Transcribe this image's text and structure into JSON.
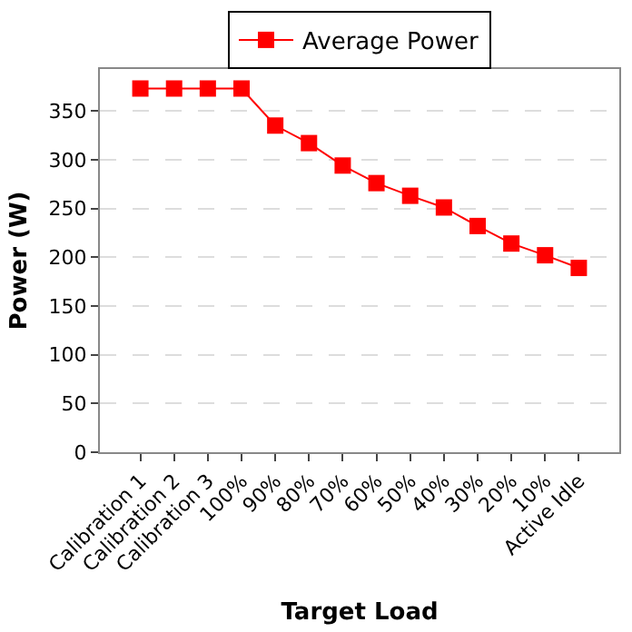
{
  "chart_data": {
    "type": "line",
    "xlabel": "Target Load",
    "ylabel": "Power (W)",
    "categories": [
      "Calibration 1",
      "Calibration 2",
      "Calibration 3",
      "100%",
      "90%",
      "80%",
      "70%",
      "60%",
      "50%",
      "40%",
      "30%",
      "20%",
      "10%",
      "Active Idle"
    ],
    "series": [
      {
        "name": "Average Power",
        "color": "#ff0000",
        "values": [
          373,
          373,
          373,
          373,
          335,
          317,
          294,
          276,
          263,
          251,
          232,
          214,
          202,
          189
        ]
      }
    ],
    "ylim": [
      0,
      393
    ],
    "yticks": [
      0,
      50,
      100,
      150,
      200,
      250,
      300,
      350
    ],
    "grid": "y",
    "legend": "top",
    "marker": "square",
    "line_style": "solid"
  }
}
